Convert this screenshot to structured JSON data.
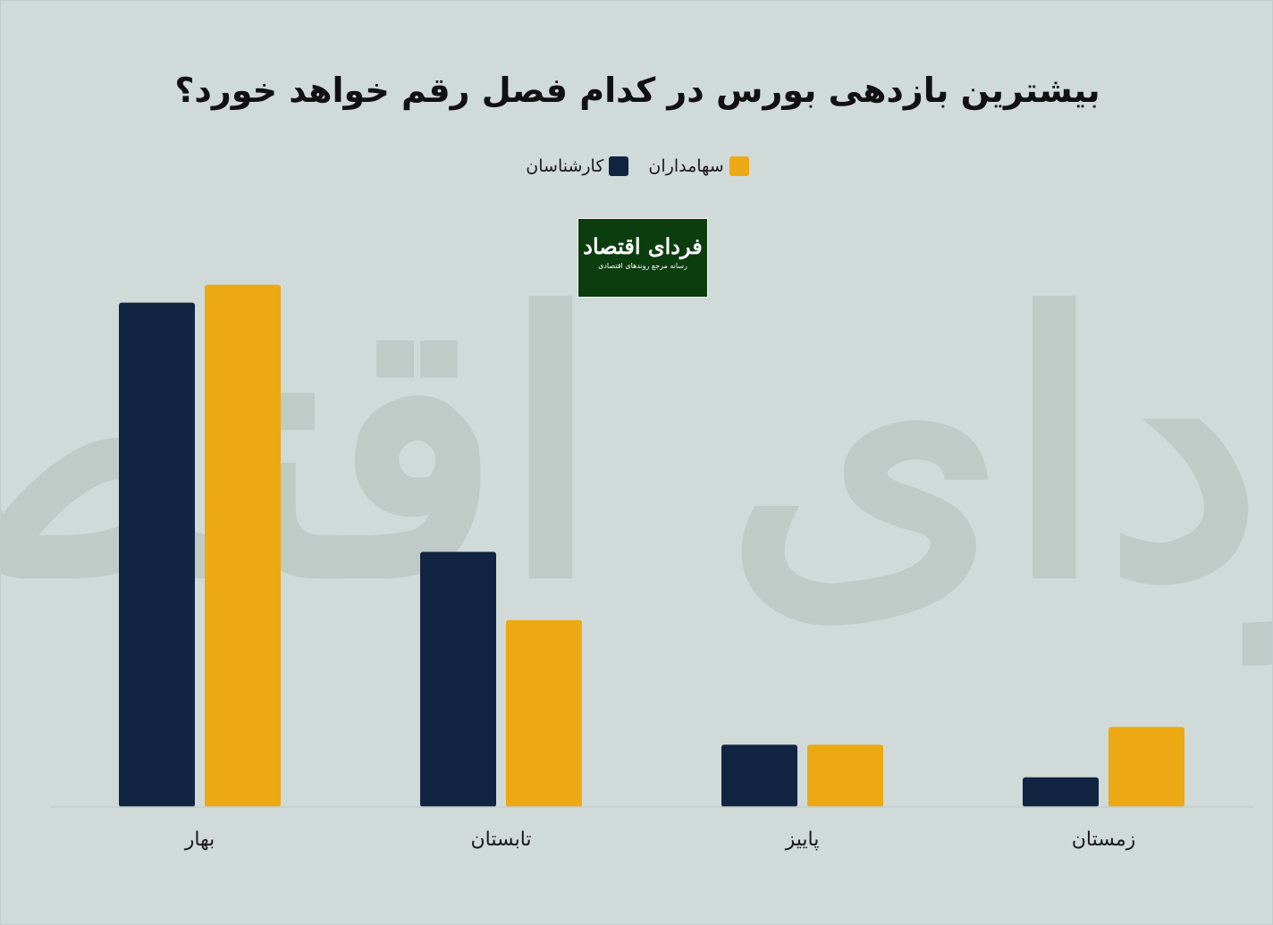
{
  "logo": {
    "name": "فردای اقتصاد",
    "tagline": "رسانه مرجع روندهای اقتصادی"
  },
  "colors": {
    "background": "#d0dad8",
    "experts": "#112442",
    "shareholders": "#eca913",
    "logo_bg": "#0c3d0f"
  },
  "chart_data": {
    "type": "bar",
    "title": "بیشترین بازدهی بورس در کدام فصل رقم خواهد خورد؟",
    "xlabel": "",
    "ylabel": "",
    "categories": [
      "بهار",
      "تابستان",
      "پاییز",
      "زمستان"
    ],
    "series": [
      {
        "name": "کارشناسان",
        "values": [
          85,
          43,
          10.5,
          5
        ]
      },
      {
        "name": "سهامداران",
        "values": [
          88,
          31.5,
          10.5,
          13.5
        ]
      }
    ],
    "ylim": [
      0,
      100
    ],
    "grid": false,
    "legend": "top-center",
    "watermark": "فردای اقتصاد"
  }
}
